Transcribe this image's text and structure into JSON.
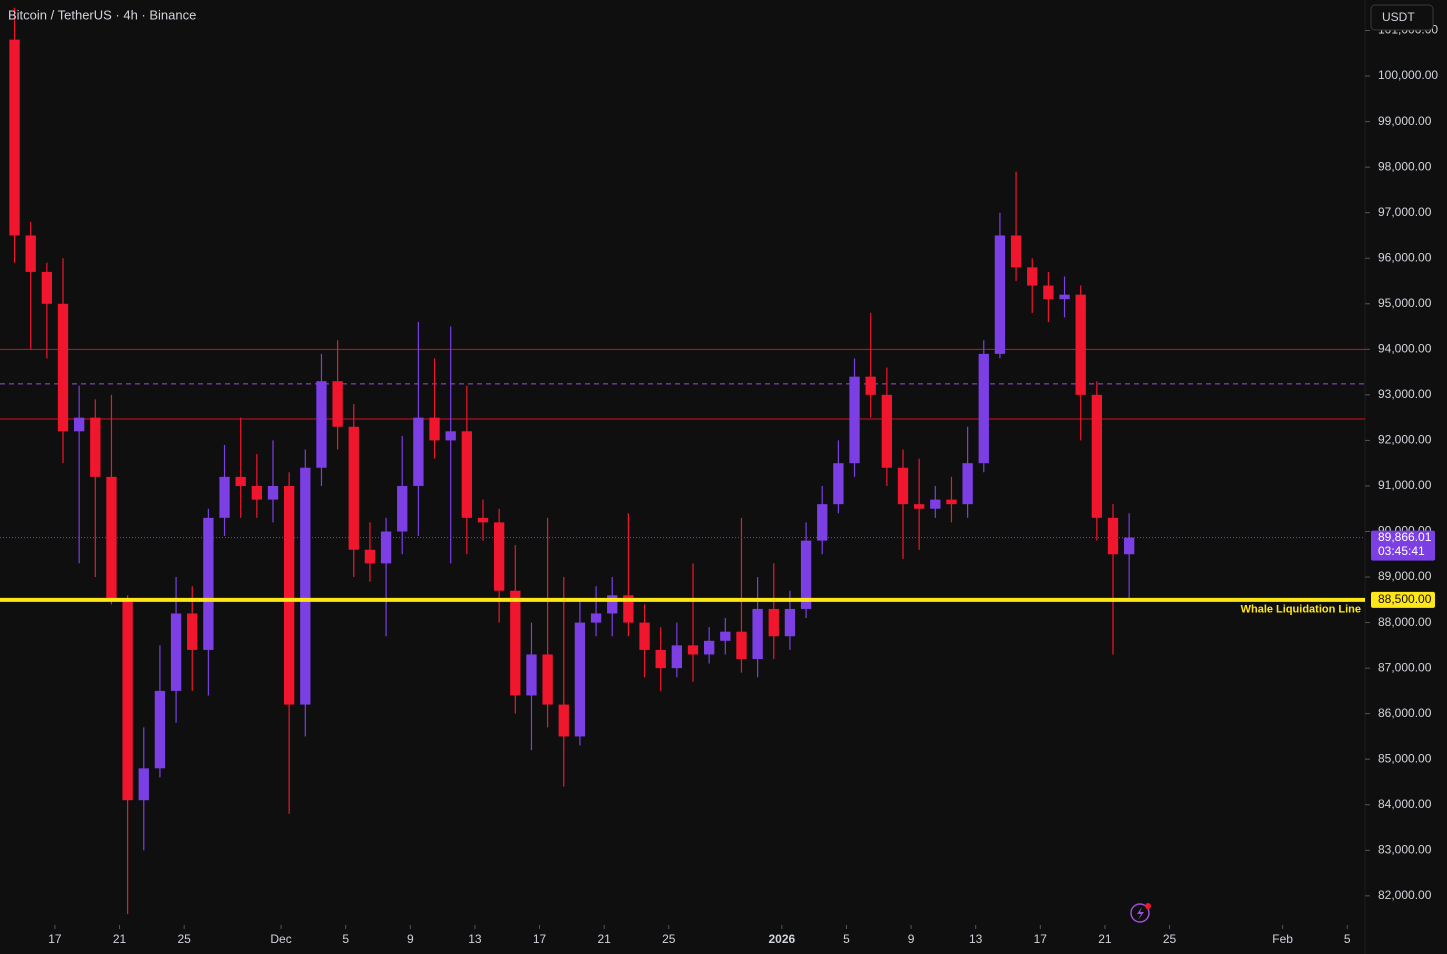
{
  "chart_data": {
    "type": "candlestick",
    "title": "Bitcoin / TetherUS · 4h · Binance",
    "currency_button": "USDT",
    "x": [
      14,
      15,
      16,
      17,
      18,
      19,
      20,
      21,
      22,
      23,
      24,
      25,
      26,
      27,
      28,
      29,
      30,
      31,
      32,
      33,
      34,
      35,
      36,
      37,
      38,
      39,
      40,
      41,
      42,
      43,
      44,
      45,
      46,
      47,
      48,
      49,
      50,
      51,
      52,
      53,
      54,
      55,
      56,
      57,
      58,
      59,
      60,
      61,
      62,
      63,
      64,
      65,
      66,
      67,
      68,
      69,
      70,
      71,
      72,
      73,
      74,
      75,
      76,
      77,
      78,
      79,
      80,
      81,
      82,
      83
    ],
    "open": [
      100800,
      96500,
      95700,
      95000,
      92200,
      92500,
      91200,
      88500,
      84100,
      84800,
      86500,
      88200,
      87400,
      90300,
      91200,
      91000,
      90700,
      91000,
      86200,
      91400,
      93300,
      92300,
      89600,
      89300,
      90000,
      91000,
      92500,
      92000,
      92200,
      90300,
      90200,
      88700,
      86400,
      87300,
      86200,
      85500,
      88000,
      88200,
      88600,
      88000,
      87400,
      87000,
      87500,
      87300,
      87600,
      87800,
      87200,
      88300,
      87700,
      88300,
      89800,
      90600,
      91500,
      93400,
      93000,
      91400,
      90600,
      90500,
      90700,
      90600,
      91500,
      93900,
      96500,
      95800,
      95400,
      95100,
      95200,
      93000,
      90300,
      89500
    ],
    "high": [
      101500,
      96800,
      95900,
      96000,
      93200,
      92900,
      93000,
      88600,
      85700,
      87500,
      89000,
      88800,
      90500,
      91900,
      92500,
      91700,
      92000,
      91300,
      91800,
      93900,
      94200,
      92800,
      90200,
      90300,
      92100,
      94600,
      93800,
      94500,
      93200,
      90700,
      90500,
      89700,
      88000,
      90300,
      89000,
      88500,
      88800,
      89000,
      90400,
      88400,
      87900,
      88000,
      89300,
      87900,
      88100,
      90300,
      89000,
      89300,
      88700,
      90200,
      91000,
      92000,
      93800,
      94800,
      93600,
      91800,
      91600,
      91000,
      91200,
      92300,
      94200,
      97000,
      97900,
      96000,
      95700,
      95600,
      95400,
      93300,
      90600,
      90400
    ],
    "low": [
      95900,
      94000,
      93800,
      91500,
      89300,
      89000,
      88400,
      81600,
      83000,
      84600,
      85800,
      86500,
      86400,
      89900,
      90300,
      90300,
      90200,
      83800,
      85500,
      91000,
      91800,
      89000,
      88900,
      87700,
      89500,
      89900,
      91600,
      89300,
      89500,
      89800,
      88000,
      86000,
      85200,
      85700,
      84400,
      85300,
      87700,
      87700,
      87700,
      86800,
      86500,
      86800,
      86700,
      87100,
      87300,
      86900,
      86800,
      87200,
      87400,
      88100,
      89500,
      90400,
      91200,
      92500,
      91000,
      89400,
      89600,
      90300,
      90200,
      90300,
      91300,
      93800,
      95500,
      94800,
      94600,
      94700,
      92000,
      89800,
      87300,
      88500
    ],
    "close": [
      96500,
      95700,
      95000,
      92200,
      92500,
      91200,
      88500,
      84100,
      84800,
      86500,
      88200,
      87400,
      90300,
      91200,
      91000,
      90700,
      91000,
      86200,
      91400,
      93300,
      92300,
      89600,
      89300,
      90000,
      91000,
      92500,
      92000,
      92200,
      90300,
      90200,
      88700,
      86400,
      87300,
      86200,
      85500,
      88000,
      88200,
      88600,
      88000,
      87400,
      87000,
      87500,
      87300,
      87600,
      87800,
      87200,
      88300,
      87700,
      88300,
      89800,
      90600,
      91500,
      93400,
      93000,
      91400,
      90600,
      90500,
      90700,
      90600,
      91500,
      93900,
      96500,
      95800,
      95400,
      95100,
      95200,
      93000,
      90300,
      89500,
      89866.01
    ],
    "up_color": "#7b3fe4",
    "down_color": "#f0162e",
    "xlim": [
      13.6,
      98.1
    ],
    "ylim": [
      81360,
      101670
    ],
    "xticks": [
      {
        "value": 17,
        "label": "17"
      },
      {
        "value": 21,
        "label": "21"
      },
      {
        "value": 25,
        "label": "25"
      },
      {
        "value": 31,
        "label": "Dec"
      },
      {
        "value": 35,
        "label": "5"
      },
      {
        "value": 39,
        "label": "9"
      },
      {
        "value": 43,
        "label": "13"
      },
      {
        "value": 47,
        "label": "17"
      },
      {
        "value": 51,
        "label": "21"
      },
      {
        "value": 55,
        "label": "25"
      },
      {
        "value": 62,
        "label": "2026"
      },
      {
        "value": 66,
        "label": "5"
      },
      {
        "value": 70,
        "label": "9"
      },
      {
        "value": 74,
        "label": "13"
      },
      {
        "value": 78,
        "label": "17"
      },
      {
        "value": 82,
        "label": "21"
      },
      {
        "value": 86,
        "label": "25"
      },
      {
        "value": 93,
        "label": "Feb"
      },
      {
        "value": 97,
        "label": "5"
      }
    ],
    "yticks": [
      {
        "value": 82000,
        "label": "82,000.00"
      },
      {
        "value": 83000,
        "label": "83,000.00"
      },
      {
        "value": 84000,
        "label": "84,000.00"
      },
      {
        "value": 85000,
        "label": "85,000.00"
      },
      {
        "value": 86000,
        "label": "86,000.00"
      },
      {
        "value": 87000,
        "label": "87,000.00"
      },
      {
        "value": 88000,
        "label": "88,000.00"
      },
      {
        "value": 89000,
        "label": "89,000.00"
      },
      {
        "value": 90000,
        "label": "90,000.00"
      },
      {
        "value": 91000,
        "label": "91,000.00"
      },
      {
        "value": 92000,
        "label": "92,000.00"
      },
      {
        "value": 93000,
        "label": "93,000.00"
      },
      {
        "value": 94000,
        "label": "94,000.00"
      },
      {
        "value": 95000,
        "label": "95,000.00"
      },
      {
        "value": 96000,
        "label": "96,000.00"
      },
      {
        "value": 97000,
        "label": "97,000.00"
      },
      {
        "value": 98000,
        "label": "98,000.00"
      },
      {
        "value": 99000,
        "label": "99,000.00"
      },
      {
        "value": 100000,
        "label": "100,000.00"
      },
      {
        "value": 101000,
        "label": "101,000.00"
      }
    ],
    "hlines": [
      {
        "value": 94000,
        "color": "#d0101f"
      },
      {
        "value": 92470,
        "color": "#d0101f"
      },
      {
        "value": 93240,
        "color": "#9c4fd6",
        "style": "dashed"
      }
    ],
    "whale_line": {
      "value": 88500,
      "label": "88,500.00",
      "annotation": "Whale Liquidation Line",
      "color": "#ffe619"
    },
    "last_price": {
      "value": 89866.01,
      "label": "89,866.01",
      "countdown": "03:45:41",
      "color": "#7b3fe4"
    }
  }
}
